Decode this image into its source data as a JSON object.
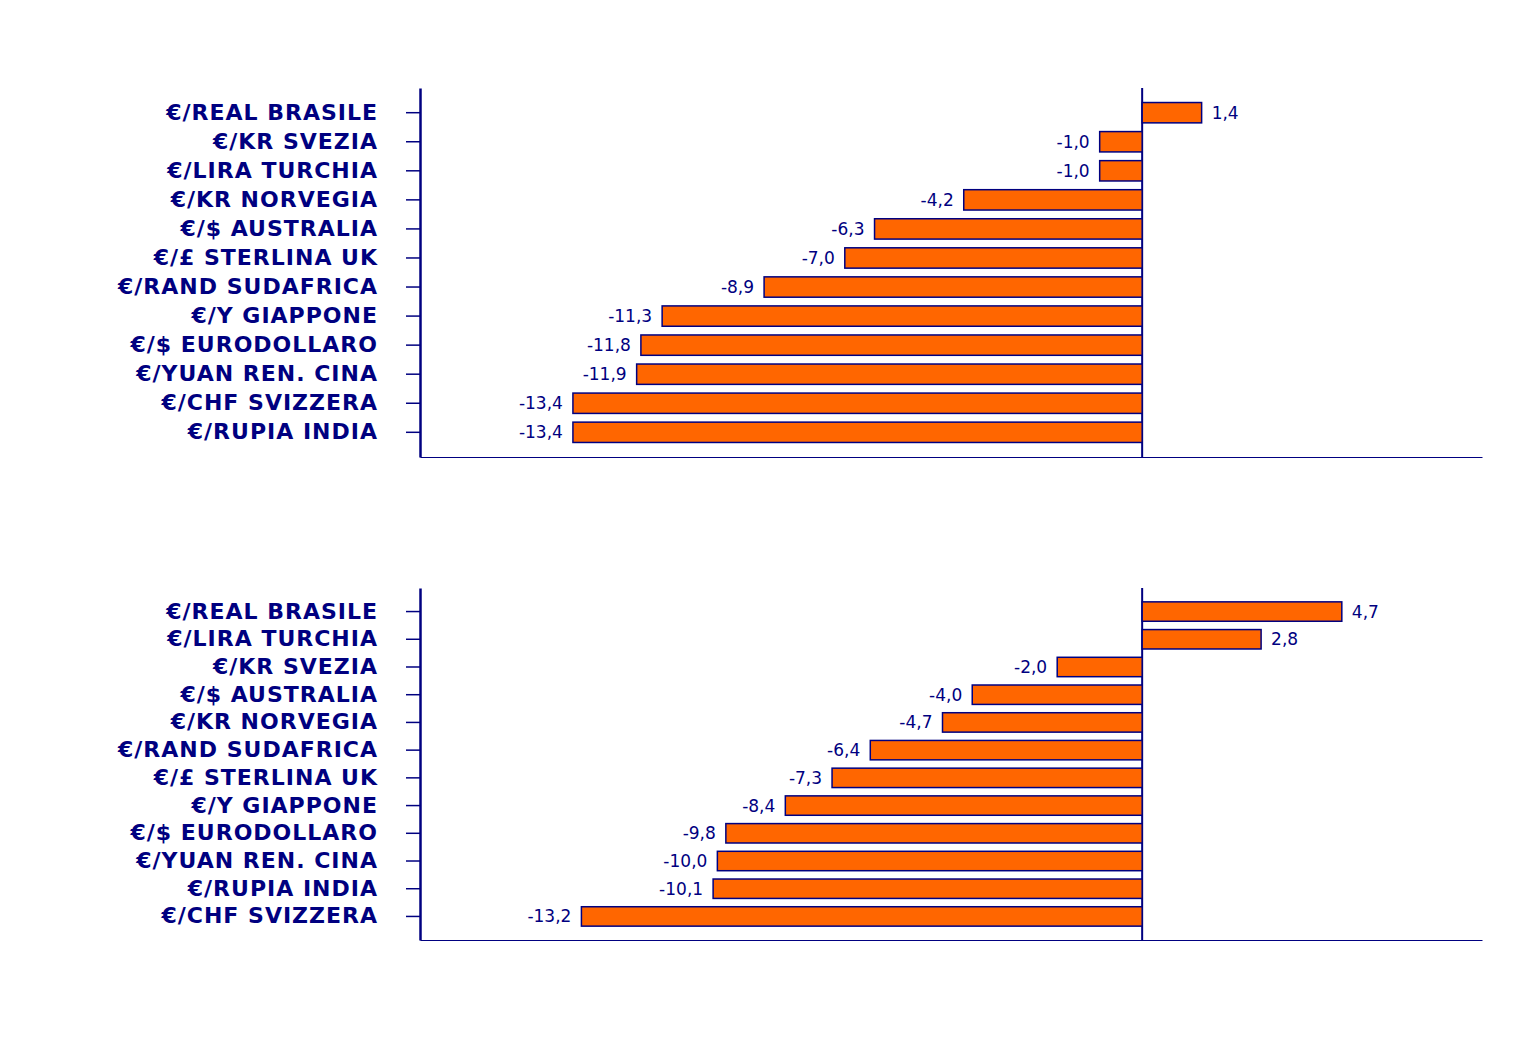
{
  "chart_data": [
    {
      "type": "bar",
      "orientation": "horizontal",
      "categories": [
        "€/REAL BRASILE",
        "€/KR SVEZIA",
        "€/LIRA TURCHIA",
        "€/KR NORVEGIA",
        "€/$ AUSTRALIA",
        "€/£ STERLINA UK",
        "€/RAND SUDAFRICA",
        "€/Y GIAPPONE",
        "€/$ EURODOLLARO",
        "€/YUAN REN. CINA",
        "€/CHF SVIZZERA",
        "€/RUPIA INDIA"
      ],
      "values": [
        1.4,
        -1.0,
        -1.0,
        -4.2,
        -6.3,
        -7.0,
        -8.9,
        -11.3,
        -11.8,
        -11.9,
        -13.4,
        -13.4
      ],
      "value_labels": [
        "1,4",
        "-1,0",
        "-1,0",
        "-4,2",
        "-6,3",
        "-7,0",
        "-8,9",
        "-11,3",
        "-11,8",
        "-11,9",
        "-13,4",
        "-13,4"
      ],
      "color": "#ff6600",
      "xlim": [
        -17,
        8
      ],
      "xticks": [
        0
      ],
      "grid": true,
      "data_labels": true,
      "tick_labels": "y"
    },
    {
      "type": "bar",
      "orientation": "horizontal",
      "categories": [
        "€/REAL BRASILE",
        "€/LIRA TURCHIA",
        "€/KR SVEZIA",
        "€/$ AUSTRALIA",
        "€/KR NORVEGIA",
        "€/RAND SUDAFRICA",
        "€/£ STERLINA UK",
        "€/Y GIAPPONE",
        "€/$ EURODOLLARO",
        "€/YUAN REN. CINA",
        "€/RUPIA INDIA",
        "€/CHF SVIZZERA"
      ],
      "values": [
        4.7,
        2.8,
        -2.0,
        -4.0,
        -4.7,
        -6.4,
        -7.3,
        -8.4,
        -9.8,
        -10.0,
        -10.1,
        -13.2
      ],
      "value_labels": [
        "4,7",
        "2,8",
        "-2,0",
        "-4,0",
        "-4,7",
        "-6,4",
        "-7,3",
        "-8,4",
        "-9,8",
        "-10,0",
        "-10,1",
        "-13,2"
      ],
      "color": "#ff6600",
      "xlim": [
        -17,
        8
      ],
      "xticks": [
        0
      ],
      "grid": true,
      "data_labels": true,
      "tick_labels": "y"
    }
  ]
}
